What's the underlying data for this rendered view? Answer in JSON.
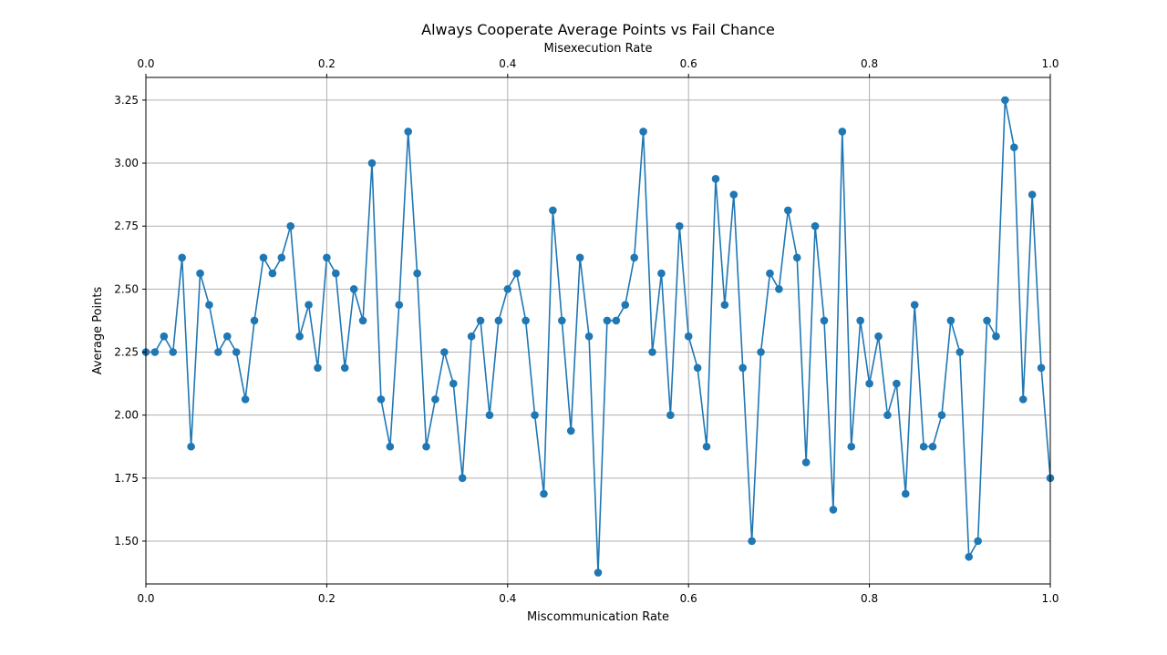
{
  "chart_data": {
    "type": "line",
    "title": "Always Cooperate Average Points vs Fail Chance",
    "xlabel": "Miscommunication Rate",
    "x2label": "Misexecution Rate",
    "ylabel": "Average Points",
    "xlim": [
      0,
      1
    ],
    "ylim": [
      1.33,
      3.34
    ],
    "xticks": [
      "0.0",
      "0.2",
      "0.4",
      "0.6",
      "0.8",
      "1.0"
    ],
    "x2ticks": [
      "0.0",
      "0.2",
      "0.4",
      "0.6",
      "0.8",
      "1.0"
    ],
    "yticks": [
      "1.50",
      "1.75",
      "2.00",
      "2.25",
      "2.50",
      "2.75",
      "3.00",
      "3.25"
    ],
    "grid": true,
    "color": "#1f77b4",
    "series": [
      {
        "x": [
          0,
          0.01,
          0.02,
          0.03,
          0.04,
          0.05,
          0.06,
          0.07,
          0.08,
          0.09,
          0.1,
          0.11,
          0.12,
          0.13,
          0.14,
          0.15,
          0.16,
          0.17,
          0.18,
          0.19,
          0.2,
          0.21,
          0.22,
          0.23,
          0.24,
          0.25,
          0.26,
          0.27,
          0.28,
          0.29,
          0.3,
          0.31,
          0.32,
          0.33,
          0.34,
          0.35,
          0.36,
          0.37,
          0.38,
          0.39,
          0.4,
          0.41,
          0.42,
          0.43,
          0.44,
          0.45,
          0.46,
          0.47,
          0.48,
          0.49,
          0.5,
          0.51,
          0.52,
          0.53,
          0.54,
          0.55,
          0.56,
          0.57,
          0.58,
          0.59,
          0.6,
          0.61,
          0.62,
          0.63,
          0.64,
          0.65,
          0.66,
          0.67,
          0.68,
          0.69,
          0.7,
          0.71,
          0.72,
          0.73,
          0.74,
          0.75,
          0.76,
          0.77,
          0.78,
          0.79,
          0.8,
          0.81,
          0.82,
          0.83,
          0.84,
          0.85,
          0.86,
          0.87,
          0.88,
          0.89,
          0.9,
          0.91,
          0.92,
          0.93,
          0.94,
          0.95,
          0.96,
          0.97,
          0.98,
          0.99,
          1.0
        ],
        "y": [
          2.25,
          2.25,
          2.3125,
          2.25,
          2.625,
          1.875,
          2.5625,
          2.4375,
          2.25,
          2.3125,
          2.25,
          2.0625,
          2.375,
          2.625,
          2.5625,
          2.625,
          2.75,
          2.3125,
          2.4375,
          2.1875,
          2.625,
          2.5625,
          2.1875,
          2.5,
          2.375,
          3.0,
          2.0625,
          1.875,
          2.4375,
          3.125,
          2.5625,
          1.875,
          2.0625,
          2.25,
          2.125,
          1.75,
          2.3125,
          2.375,
          2.0,
          2.375,
          2.5,
          2.5625,
          2.375,
          2.0,
          1.6875,
          2.8125,
          2.375,
          1.9375,
          2.625,
          2.3125,
          1.375,
          2.375,
          2.375,
          2.4375,
          2.625,
          3.125,
          2.25,
          2.5625,
          2.0,
          2.75,
          2.3125,
          2.1875,
          1.875,
          2.9375,
          2.4375,
          2.875,
          2.1875,
          1.5,
          2.25,
          2.5625,
          2.5,
          2.8125,
          2.625,
          1.8125,
          2.75,
          2.375,
          1.625,
          3.125,
          1.875,
          2.375,
          2.125,
          2.3125,
          2.0,
          2.125,
          1.6875,
          2.4375,
          1.875,
          1.875,
          2.0,
          2.375,
          2.25,
          1.4375,
          1.5,
          2.375,
          2.3125,
          3.25,
          3.0625,
          2.0625,
          2.875,
          2.1875,
          1.75
        ]
      }
    ]
  }
}
